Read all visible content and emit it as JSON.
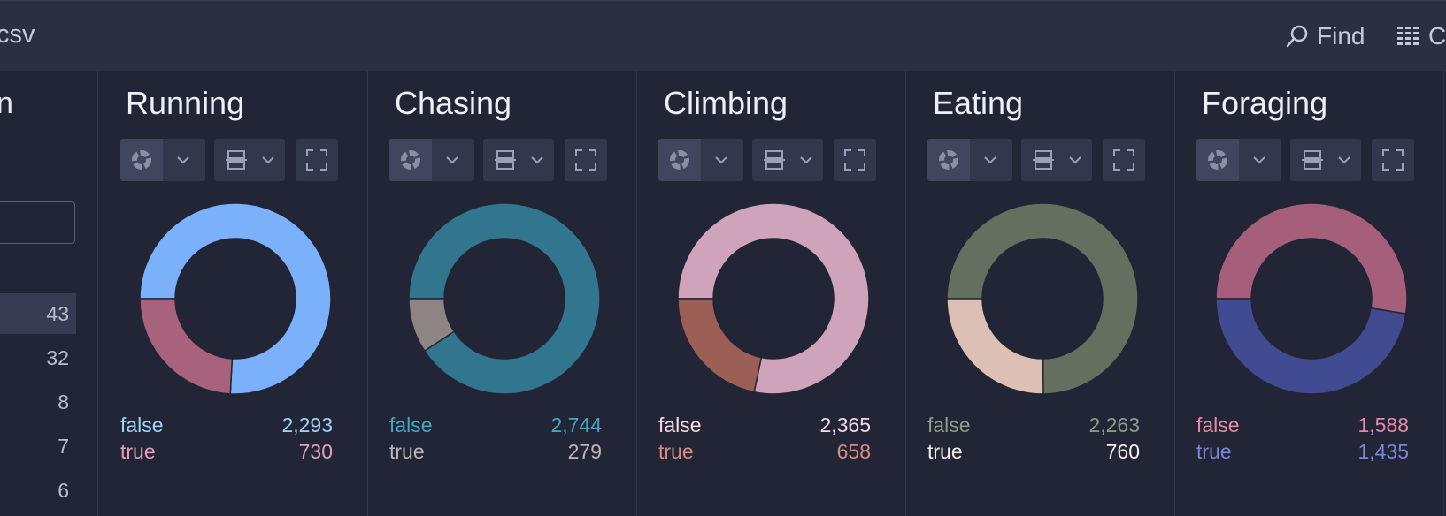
{
  "topbar": {
    "file_name": "csv",
    "find_label": "Find",
    "columns_label": "C"
  },
  "left_column": {
    "title_fragment": "n",
    "rows": [
      "43",
      "32",
      "8",
      "7",
      "6"
    ]
  },
  "panels": [
    {
      "title": "Running",
      "slices": [
        {
          "label": "false",
          "value": 2293,
          "display": "2,293",
          "color": "#7bb1fb",
          "text_color": "#9dd4f5"
        },
        {
          "label": "true",
          "value": 730,
          "display": "730",
          "color": "#a9627c",
          "text_color": "#e3a1b8"
        }
      ]
    },
    {
      "title": "Chasing",
      "slices": [
        {
          "label": "false",
          "value": 2744,
          "display": "2,744",
          "color": "#31758f",
          "text_color": "#46a6c0"
        },
        {
          "label": "true",
          "value": 279,
          "display": "279",
          "color": "#8d8483",
          "text_color": "#bdb6b5"
        }
      ]
    },
    {
      "title": "Climbing",
      "slices": [
        {
          "label": "false",
          "value": 2365,
          "display": "2,365",
          "color": "#cfa3b9",
          "text_color": "#f2dbe6"
        },
        {
          "label": "true",
          "value": 658,
          "display": "658",
          "color": "#9b5f55",
          "text_color": "#d78c7f"
        }
      ]
    },
    {
      "title": "Eating",
      "slices": [
        {
          "label": "false",
          "value": 2263,
          "display": "2,263",
          "color": "#646f5f",
          "text_color": "#8f9a8b"
        },
        {
          "label": "true",
          "value": 760,
          "display": "760",
          "color": "#dcbfb5",
          "text_color": "#f6eeeb"
        }
      ]
    },
    {
      "title": "Foraging",
      "slices": [
        {
          "label": "false",
          "value": 1588,
          "display": "1,588",
          "color": "#a65f7b",
          "text_color": "#e18ba9"
        },
        {
          "label": "true",
          "value": 1435,
          "display": "1,435",
          "color": "#414b91",
          "text_color": "#7a86d8"
        }
      ]
    }
  ]
}
